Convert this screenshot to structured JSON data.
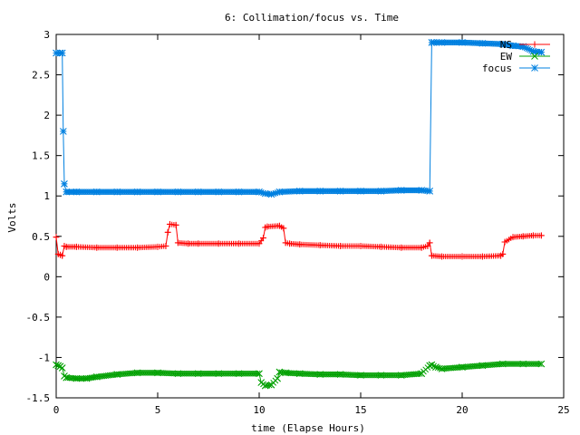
{
  "chart_data": {
    "type": "line",
    "title": "6: Collimation/focus vs. Time",
    "xlabel": "time (Elapse Hours)",
    "ylabel": "Volts",
    "xlim": [
      0,
      25
    ],
    "ylim": [
      -1.5,
      3
    ],
    "x_ticks": [
      0,
      5,
      10,
      15,
      20,
      25
    ],
    "y_ticks": [
      -1.5,
      -1,
      -0.5,
      0,
      0.5,
      1,
      1.5,
      2,
      2.5,
      3
    ],
    "x_tick_labels": [
      "0",
      "5",
      "10",
      "15",
      "20",
      "25"
    ],
    "y_tick_labels": [
      "-1.5",
      "-1",
      "-0.5",
      "0",
      "0.5",
      "1",
      "1.5",
      "2",
      "2.5",
      "3"
    ],
    "grid": false,
    "legend_position": "top-right",
    "series": [
      {
        "name": "NS",
        "color": "#ff0000",
        "marker": "plus",
        "x": [
          0,
          0.1,
          0.2,
          0.3,
          0.4,
          0.5,
          1,
          2,
          3,
          4,
          5,
          5.4,
          5.5,
          5.6,
          5.9,
          6,
          6.5,
          7,
          8,
          9,
          10,
          10.2,
          10.3,
          10.4,
          11,
          11.2,
          11.3,
          11.5,
          12,
          13,
          14,
          15,
          16,
          17,
          18,
          18.3,
          18.4,
          18.5,
          19,
          20,
          21,
          21.9,
          22,
          22.1,
          22.5,
          23,
          23.5,
          23.9
        ],
        "y": [
          0.49,
          0.28,
          0.27,
          0.26,
          0.38,
          0.37,
          0.37,
          0.36,
          0.36,
          0.36,
          0.37,
          0.38,
          0.55,
          0.65,
          0.64,
          0.42,
          0.41,
          0.41,
          0.41,
          0.41,
          0.41,
          0.48,
          0.61,
          0.62,
          0.63,
          0.6,
          0.42,
          0.41,
          0.4,
          0.39,
          0.38,
          0.38,
          0.37,
          0.36,
          0.36,
          0.38,
          0.42,
          0.26,
          0.25,
          0.25,
          0.25,
          0.26,
          0.28,
          0.43,
          0.49,
          0.5,
          0.51,
          0.51
        ]
      },
      {
        "name": "EW",
        "color": "#00a000",
        "marker": "x",
        "x": [
          0,
          0.1,
          0.2,
          0.3,
          0.4,
          0.5,
          1,
          1.5,
          2,
          3,
          4,
          5,
          6,
          7,
          8,
          9,
          10,
          10.1,
          10.3,
          10.6,
          10.9,
          11,
          11.3,
          12,
          13,
          14,
          15,
          16,
          17,
          18,
          18.4,
          18.5,
          18.7,
          19,
          20,
          21,
          22,
          23,
          23.9
        ],
        "y": [
          -1.09,
          -1.1,
          -1.11,
          -1.13,
          -1.23,
          -1.25,
          -1.26,
          -1.26,
          -1.24,
          -1.21,
          -1.19,
          -1.19,
          -1.2,
          -1.2,
          -1.2,
          -1.2,
          -1.2,
          -1.31,
          -1.35,
          -1.34,
          -1.26,
          -1.18,
          -1.19,
          -1.2,
          -1.21,
          -1.21,
          -1.22,
          -1.22,
          -1.22,
          -1.2,
          -1.1,
          -1.09,
          -1.12,
          -1.14,
          -1.12,
          -1.1,
          -1.08,
          -1.08,
          -1.08
        ]
      },
      {
        "name": "focus",
        "color": "#0080e0",
        "marker": "star",
        "x": [
          0,
          0.2,
          0.3,
          0.35,
          0.4,
          0.5,
          1,
          2,
          3,
          4,
          5,
          6,
          7,
          8,
          9,
          10,
          10.3,
          10.6,
          11,
          12,
          13,
          14,
          15,
          16,
          17,
          18,
          18.4,
          18.5,
          18.6,
          19,
          20,
          21,
          22,
          22.5,
          23,
          23.5,
          23.9
        ],
        "y": [
          2.77,
          2.77,
          2.77,
          1.8,
          1.15,
          1.05,
          1.05,
          1.05,
          1.05,
          1.05,
          1.05,
          1.05,
          1.05,
          1.05,
          1.05,
          1.05,
          1.03,
          1.02,
          1.05,
          1.06,
          1.06,
          1.06,
          1.06,
          1.06,
          1.07,
          1.07,
          1.06,
          2.9,
          2.9,
          2.9,
          2.9,
          2.89,
          2.88,
          2.86,
          2.85,
          2.79,
          2.78
        ]
      }
    ]
  }
}
